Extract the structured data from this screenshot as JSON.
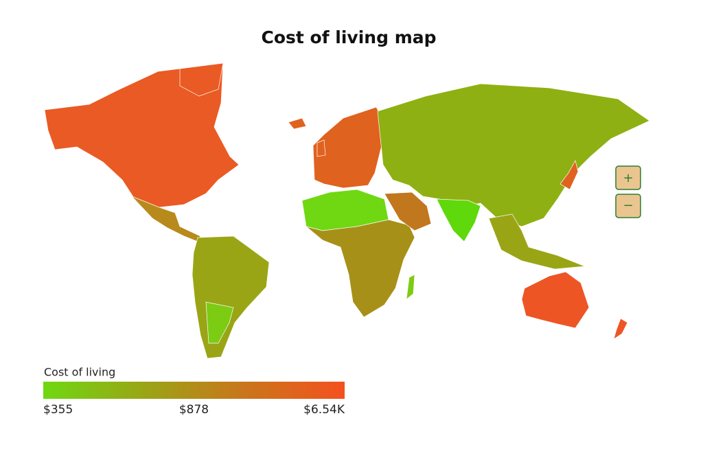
{
  "header": {
    "title": "Cost of living map"
  },
  "legend": {
    "title": "Cost of living",
    "colors": [
      "#6fd812",
      "#9aa516",
      "#c9761c",
      "#f4511e"
    ],
    "ticks": [
      {
        "value": 355,
        "label": "$355"
      },
      {
        "value": 878,
        "label": "$878"
      },
      {
        "value": 6540,
        "label": "$6.54K"
      }
    ]
  },
  "controls": {
    "zoom_in": "+",
    "zoom_out": "−"
  }
}
